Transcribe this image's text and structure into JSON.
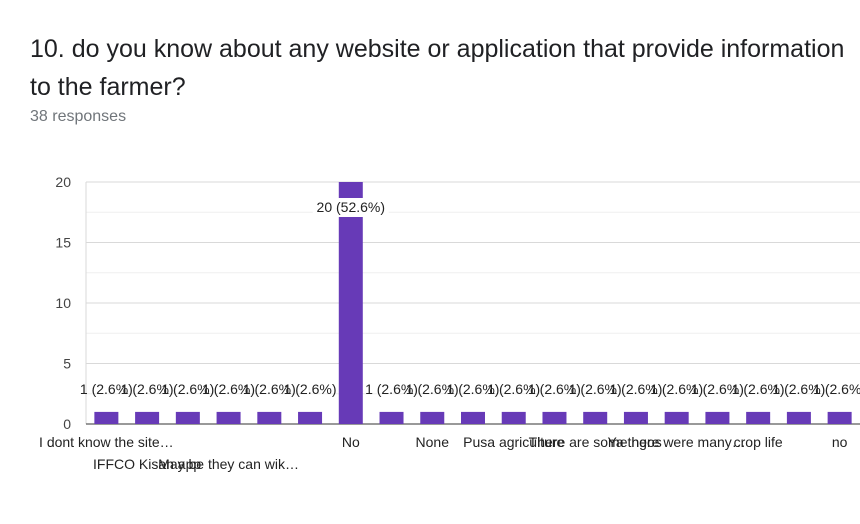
{
  "title": "10. do you know about any website or application that provide information to the farmer?",
  "subtitle": "38 responses",
  "chart_data": {
    "type": "bar",
    "ylim": [
      0,
      20
    ],
    "yticks": [
      0,
      5,
      10,
      15,
      20
    ],
    "grid": true,
    "bar_color": "#673ab7",
    "categories": [
      "I dont know the site…",
      "IFFCO Kisan app",
      "",
      "May be they can wik…",
      "",
      "",
      "No",
      "",
      "None",
      "",
      "Pusa agriculture",
      "",
      "There are some ngos",
      "",
      "Ya there were many…",
      "",
      "crop life",
      "",
      "no"
    ],
    "values": [
      1,
      1,
      1,
      1,
      1,
      1,
      20,
      1,
      1,
      1,
      1,
      1,
      1,
      1,
      1,
      1,
      1,
      1,
      1
    ],
    "labels": [
      "1 (2.6%)",
      "1 (2.6%)",
      "1 (2.6%)",
      "1 (2.6%)",
      "1 (2.6%)",
      "1 (2.6%)",
      "20 (52.6%)",
      "1 (2.6%)",
      "1 (2.6%)",
      "1 (2.6%)",
      "1 (2.6%)",
      "1 (2.6%)",
      "1 (2.6%)",
      "1 (2.6%)",
      "1 (2.6%)",
      "1 (2.6%)",
      "1 (2.6%)",
      "1 (2.6%)",
      "1 (2.6%)"
    ]
  }
}
